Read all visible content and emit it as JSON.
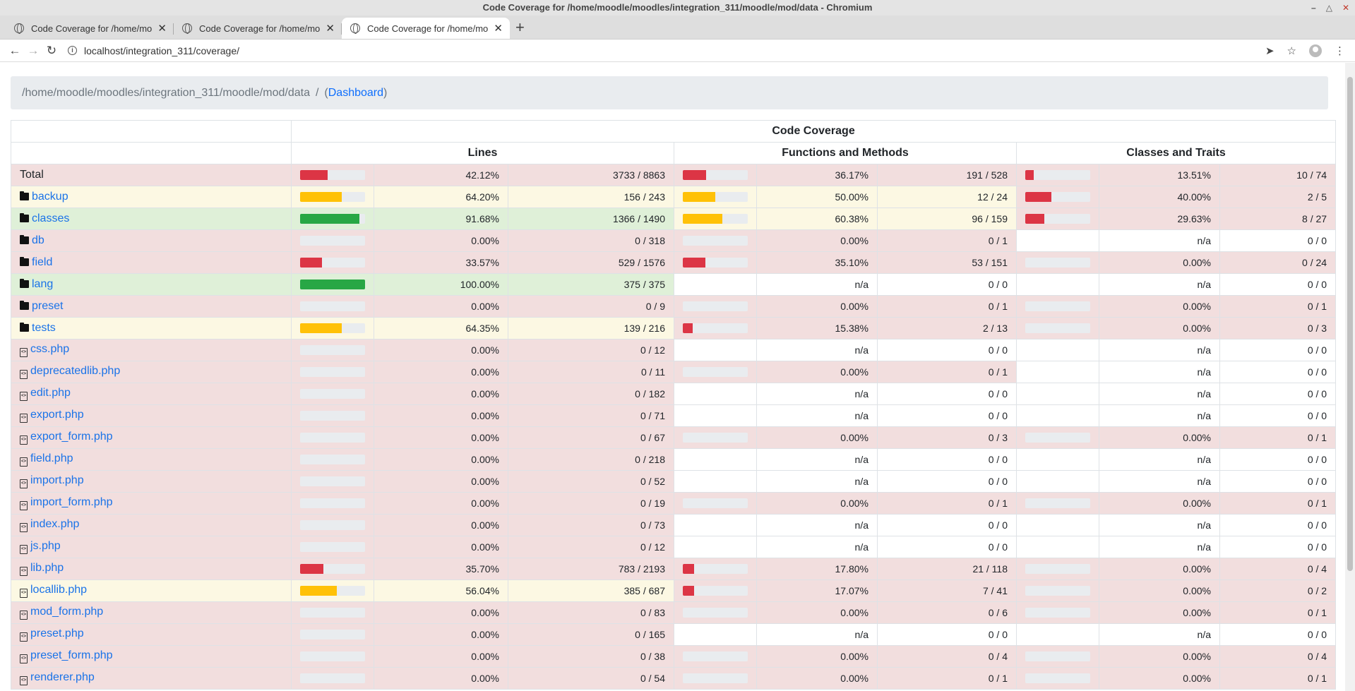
{
  "window": {
    "title": "Code Coverage for /home/moodle/moodles/integration_311/moodle/mod/data - Chromium"
  },
  "tabs": [
    {
      "label": "Code Coverage for /home/moodle"
    },
    {
      "label": "Code Coverage for /home/moodle"
    },
    {
      "label": "Code Coverage for /home/moodle"
    }
  ],
  "address": {
    "url": "localhost/integration_311/coverage/"
  },
  "breadcrumb": {
    "path": "/home/moodle/moodles/integration_311/moodle/mod/data",
    "sep": "/",
    "open": "(",
    "link": "Dashboard",
    "close": ")"
  },
  "headers": {
    "coverage": "Code Coverage",
    "lines": "Lines",
    "functions": "Functions and Methods",
    "classes": "Classes and Traits"
  },
  "colors": {
    "danger": "#dc3545",
    "warning": "#ffc107",
    "success": "#28a745"
  },
  "rows": [
    {
      "name": "Total",
      "type": "total",
      "lp": "42.12%",
      "lc": "3733 / 8863",
      "fp": "36.17%",
      "fc": "191 / 528",
      "cp": "13.51%",
      "cc": "10 / 74"
    },
    {
      "name": "backup",
      "type": "dir",
      "lp": "64.20%",
      "lc": "156 / 243",
      "fp": "50.00%",
      "fc": "12 / 24",
      "cp": "40.00%",
      "cc": "2 / 5"
    },
    {
      "name": "classes",
      "type": "dir",
      "lp": "91.68%",
      "lc": "1366 / 1490",
      "fp": "60.38%",
      "fc": "96 / 159",
      "cp": "29.63%",
      "cc": "8 / 27"
    },
    {
      "name": "db",
      "type": "dir",
      "lp": "0.00%",
      "lc": "0 / 318",
      "fp": "0.00%",
      "fc": "0 / 1",
      "cp": "n/a",
      "cc": "0 / 0"
    },
    {
      "name": "field",
      "type": "dir",
      "lp": "33.57%",
      "lc": "529 / 1576",
      "fp": "35.10%",
      "fc": "53 / 151",
      "cp": "0.00%",
      "cc": "0 / 24"
    },
    {
      "name": "lang",
      "type": "dir",
      "lp": "100.00%",
      "lc": "375 / 375",
      "fp": "n/a",
      "fc": "0 / 0",
      "cp": "n/a",
      "cc": "0 / 0"
    },
    {
      "name": "preset",
      "type": "dir",
      "lp": "0.00%",
      "lc": "0 / 9",
      "fp": "0.00%",
      "fc": "0 / 1",
      "cp": "0.00%",
      "cc": "0 / 1"
    },
    {
      "name": "tests",
      "type": "dir",
      "lp": "64.35%",
      "lc": "139 / 216",
      "fp": "15.38%",
      "fc": "2 / 13",
      "cp": "0.00%",
      "cc": "0 / 3"
    },
    {
      "name": "css.php",
      "type": "file",
      "lp": "0.00%",
      "lc": "0 / 12",
      "fp": "n/a",
      "fc": "0 / 0",
      "cp": "n/a",
      "cc": "0 / 0"
    },
    {
      "name": "deprecatedlib.php",
      "type": "file",
      "lp": "0.00%",
      "lc": "0 / 11",
      "fp": "0.00%",
      "fc": "0 / 1",
      "cp": "n/a",
      "cc": "0 / 0"
    },
    {
      "name": "edit.php",
      "type": "file",
      "lp": "0.00%",
      "lc": "0 / 182",
      "fp": "n/a",
      "fc": "0 / 0",
      "cp": "n/a",
      "cc": "0 / 0"
    },
    {
      "name": "export.php",
      "type": "file",
      "lp": "0.00%",
      "lc": "0 / 71",
      "fp": "n/a",
      "fc": "0 / 0",
      "cp": "n/a",
      "cc": "0 / 0"
    },
    {
      "name": "export_form.php",
      "type": "file",
      "lp": "0.00%",
      "lc": "0 / 67",
      "fp": "0.00%",
      "fc": "0 / 3",
      "cp": "0.00%",
      "cc": "0 / 1"
    },
    {
      "name": "field.php",
      "type": "file",
      "lp": "0.00%",
      "lc": "0 / 218",
      "fp": "n/a",
      "fc": "0 / 0",
      "cp": "n/a",
      "cc": "0 / 0"
    },
    {
      "name": "import.php",
      "type": "file",
      "lp": "0.00%",
      "lc": "0 / 52",
      "fp": "n/a",
      "fc": "0 / 0",
      "cp": "n/a",
      "cc": "0 / 0"
    },
    {
      "name": "import_form.php",
      "type": "file",
      "lp": "0.00%",
      "lc": "0 / 19",
      "fp": "0.00%",
      "fc": "0 / 1",
      "cp": "0.00%",
      "cc": "0 / 1"
    },
    {
      "name": "index.php",
      "type": "file",
      "lp": "0.00%",
      "lc": "0 / 73",
      "fp": "n/a",
      "fc": "0 / 0",
      "cp": "n/a",
      "cc": "0 / 0"
    },
    {
      "name": "js.php",
      "type": "file",
      "lp": "0.00%",
      "lc": "0 / 12",
      "fp": "n/a",
      "fc": "0 / 0",
      "cp": "n/a",
      "cc": "0 / 0"
    },
    {
      "name": "lib.php",
      "type": "file",
      "lp": "35.70%",
      "lc": "783 / 2193",
      "fp": "17.80%",
      "fc": "21 / 118",
      "cp": "0.00%",
      "cc": "0 / 4"
    },
    {
      "name": "locallib.php",
      "type": "file",
      "lp": "56.04%",
      "lc": "385 / 687",
      "fp": "17.07%",
      "fc": "7 / 41",
      "cp": "0.00%",
      "cc": "0 / 2"
    },
    {
      "name": "mod_form.php",
      "type": "file",
      "lp": "0.00%",
      "lc": "0 / 83",
      "fp": "0.00%",
      "fc": "0 / 6",
      "cp": "0.00%",
      "cc": "0 / 1"
    },
    {
      "name": "preset.php",
      "type": "file",
      "lp": "0.00%",
      "lc": "0 / 165",
      "fp": "n/a",
      "fc": "0 / 0",
      "cp": "n/a",
      "cc": "0 / 0"
    },
    {
      "name": "preset_form.php",
      "type": "file",
      "lp": "0.00%",
      "lc": "0 / 38",
      "fp": "0.00%",
      "fc": "0 / 4",
      "cp": "0.00%",
      "cc": "0 / 4"
    },
    {
      "name": "renderer.php",
      "type": "file",
      "lp": "0.00%",
      "lc": "0 / 54",
      "fp": "0.00%",
      "fc": "0 / 1",
      "cp": "0.00%",
      "cc": "0 / 1"
    }
  ]
}
